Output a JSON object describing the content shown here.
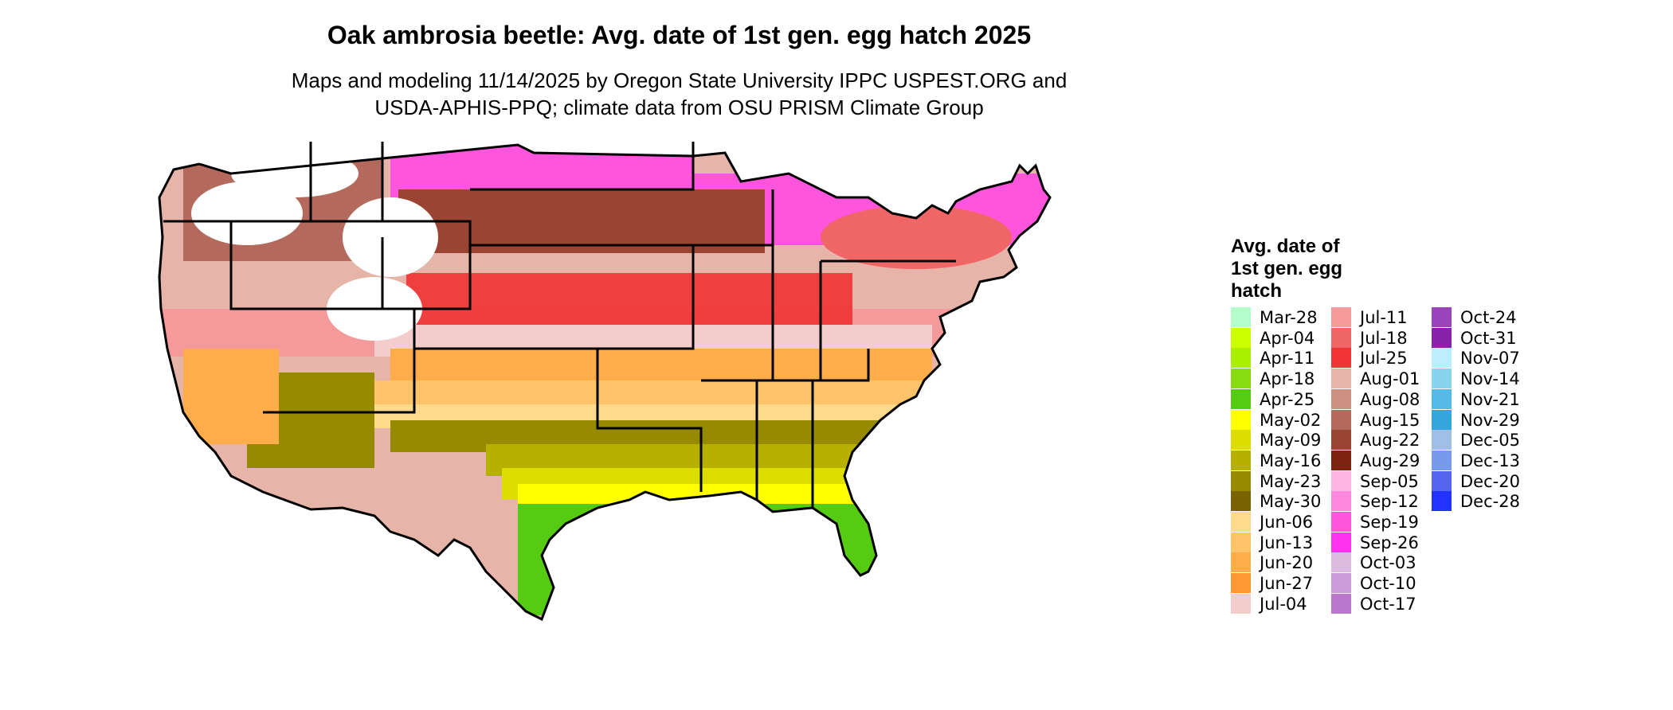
{
  "title": "Oak ambrosia beetle: Avg. date of 1st gen. egg hatch 2025",
  "subtitle_line1": "Maps and modeling 11/14/2025 by Oregon State University IPPC USPEST.ORG and",
  "subtitle_line2": "USDA-APHIS-PPQ; climate data from OSU PRISM Climate Group",
  "legend": {
    "title_line1": "Avg. date of",
    "title_line2": "1st gen. egg",
    "title_line3": "hatch",
    "columns": [
      [
        {
          "label": "Mar-28",
          "color": "#b3ffcc"
        },
        {
          "label": "Apr-04",
          "color": "#ccff00"
        },
        {
          "label": "Apr-11",
          "color": "#aaee00"
        },
        {
          "label": "Apr-18",
          "color": "#88dd11"
        },
        {
          "label": "Apr-25",
          "color": "#55cc11"
        },
        {
          "label": "May-02",
          "color": "#ffff00"
        },
        {
          "label": "May-09",
          "color": "#dddd00"
        },
        {
          "label": "May-16",
          "color": "#b8b000"
        },
        {
          "label": "May-23",
          "color": "#968a00"
        },
        {
          "label": "May-30",
          "color": "#7a6200"
        },
        {
          "label": "Jun-06",
          "color": "#ffd98c"
        },
        {
          "label": "Jun-13",
          "color": "#ffc46a"
        },
        {
          "label": "Jun-20",
          "color": "#ffad4a"
        },
        {
          "label": "Jun-27",
          "color": "#ff9933"
        },
        {
          "label": "Jul-04",
          "color": "#f5cccc"
        }
      ],
      [
        {
          "label": "Jul-11",
          "color": "#f59a9a"
        },
        {
          "label": "Jul-18",
          "color": "#f06666"
        },
        {
          "label": "Jul-25",
          "color": "#f03333"
        },
        {
          "label": "Aug-01",
          "color": "#e6b4a8"
        },
        {
          "label": "Aug-08",
          "color": "#cc8f82"
        },
        {
          "label": "Aug-15",
          "color": "#b36a5c"
        },
        {
          "label": "Aug-22",
          "color": "#9a4433"
        },
        {
          "label": "Aug-29",
          "color": "#802211"
        },
        {
          "label": "Sep-05",
          "color": "#ffb3e0"
        },
        {
          "label": "Sep-12",
          "color": "#ff88dd"
        },
        {
          "label": "Sep-19",
          "color": "#ff55dd"
        },
        {
          "label": "Sep-26",
          "color": "#ff33ee"
        },
        {
          "label": "Oct-03",
          "color": "#ddbbe0"
        },
        {
          "label": "Oct-10",
          "color": "#cc99d9"
        },
        {
          "label": "Oct-17",
          "color": "#bb77cc"
        }
      ],
      [
        {
          "label": "Oct-24",
          "color": "#9a44bb"
        },
        {
          "label": "Oct-31",
          "color": "#8822aa"
        },
        {
          "label": "Nov-07",
          "color": "#bbeeff"
        },
        {
          "label": "Nov-14",
          "color": "#88d4ee"
        },
        {
          "label": "Nov-21",
          "color": "#55bbe6"
        },
        {
          "label": "Nov-29",
          "color": "#33a6dd"
        },
        {
          "label": "Dec-05",
          "color": "#a0bfe6"
        },
        {
          "label": "Dec-13",
          "color": "#7799ee"
        },
        {
          "label": "Dec-20",
          "color": "#5566ee"
        },
        {
          "label": "Dec-28",
          "color": "#2233ff"
        }
      ]
    ]
  }
}
